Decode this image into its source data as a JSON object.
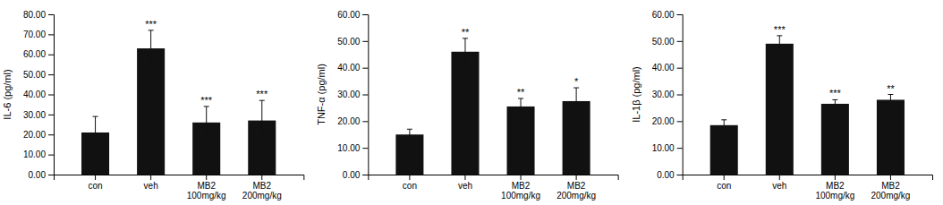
{
  "chart_data": [
    {
      "type": "bar",
      "ylabel": "IL-6 (pg/ml)",
      "categories": [
        "con",
        "veh",
        "MB2\n100mg/kg",
        "MB2\n200mg/kg"
      ],
      "values": [
        21,
        63,
        26,
        27
      ],
      "errors": [
        8,
        9,
        8,
        10
      ],
      "annotations": [
        null,
        "***",
        "***",
        "***"
      ],
      "color": "#111111",
      "ylim": [
        0,
        80
      ],
      "yticks": [
        {
          "value": 0,
          "label": "0.00"
        },
        {
          "value": 10,
          "label": "10.00"
        },
        {
          "value": 20,
          "label": "20.00"
        },
        {
          "value": 30,
          "label": "30.00"
        },
        {
          "value": 40,
          "label": "40.00"
        },
        {
          "value": 50,
          "label": "50.00"
        },
        {
          "value": 60,
          "label": "60.00"
        },
        {
          "value": 70,
          "label": "70.00"
        },
        {
          "value": 80,
          "label": "80.00"
        }
      ]
    },
    {
      "type": "bar",
      "ylabel": "TNF-α (pg/ml)",
      "categories": [
        "con",
        "veh",
        "MB2\n100mg/kg",
        "MB2\n200mg/kg"
      ],
      "values": [
        15,
        46,
        25.5,
        27.5
      ],
      "errors": [
        2,
        5,
        3,
        5
      ],
      "annotations": [
        null,
        "**",
        "**",
        "*"
      ],
      "color": "#111111",
      "ylim": [
        0,
        60
      ],
      "yticks": [
        {
          "value": 0,
          "label": "0.00"
        },
        {
          "value": 10,
          "label": "10.00"
        },
        {
          "value": 20,
          "label": "20.00"
        },
        {
          "value": 30,
          "label": "30.00"
        },
        {
          "value": 40,
          "label": "40.00"
        },
        {
          "value": 50,
          "label": "50.00"
        },
        {
          "value": 60,
          "label": "60.00"
        }
      ]
    },
    {
      "type": "bar",
      "ylabel": "IL-1β (pg/ml)",
      "categories": [
        "con",
        "veh",
        "MB2\n100mg/kg",
        "MB2\n200mg/kg"
      ],
      "values": [
        18.5,
        49,
        26.5,
        28
      ],
      "errors": [
        2,
        3,
        1.5,
        2
      ],
      "annotations": [
        null,
        "***",
        "***",
        "**"
      ],
      "color": "#111111",
      "ylim": [
        0,
        60
      ],
      "yticks": [
        {
          "value": 0,
          "label": "0.00"
        },
        {
          "value": 10,
          "label": "10.00"
        },
        {
          "value": 20,
          "label": "20.00"
        },
        {
          "value": 30,
          "label": "30.00"
        },
        {
          "value": 40,
          "label": "40.00"
        },
        {
          "value": 50,
          "label": "50.00"
        },
        {
          "value": 60,
          "label": "60.00"
        }
      ]
    }
  ]
}
